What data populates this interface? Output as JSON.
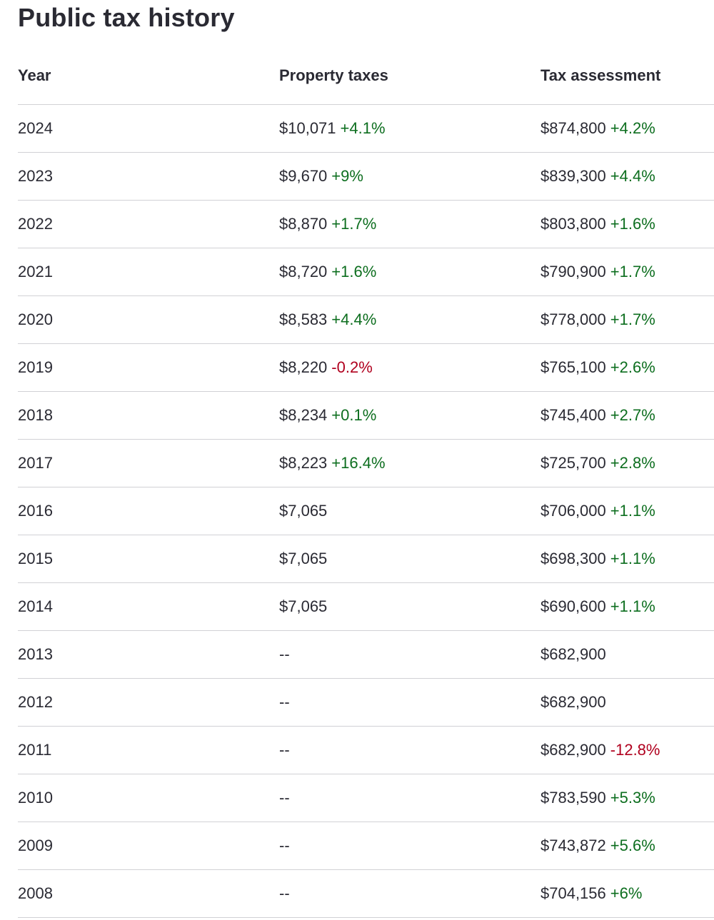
{
  "title": "Public tax history",
  "columns": {
    "year": "Year",
    "property_taxes": "Property taxes",
    "tax_assessment": "Tax assessment"
  },
  "colors": {
    "increase": "#0d6e1f",
    "decrease": "#b0001e",
    "divider": "#d1d1d5",
    "text": "#2a2a33"
  },
  "rows": [
    {
      "year": "2024",
      "tax": "$10,071",
      "tax_change": "+4.1%",
      "assessment": "$874,800",
      "assessment_change": "+4.2%"
    },
    {
      "year": "2023",
      "tax": "$9,670",
      "tax_change": "+9%",
      "assessment": "$839,300",
      "assessment_change": "+4.4%"
    },
    {
      "year": "2022",
      "tax": "$8,870",
      "tax_change": "+1.7%",
      "assessment": "$803,800",
      "assessment_change": "+1.6%"
    },
    {
      "year": "2021",
      "tax": "$8,720",
      "tax_change": "+1.6%",
      "assessment": "$790,900",
      "assessment_change": "+1.7%"
    },
    {
      "year": "2020",
      "tax": "$8,583",
      "tax_change": "+4.4%",
      "assessment": "$778,000",
      "assessment_change": "+1.7%"
    },
    {
      "year": "2019",
      "tax": "$8,220",
      "tax_change": "-0.2%",
      "assessment": "$765,100",
      "assessment_change": "+2.6%"
    },
    {
      "year": "2018",
      "tax": "$8,234",
      "tax_change": "+0.1%",
      "assessment": "$745,400",
      "assessment_change": "+2.7%"
    },
    {
      "year": "2017",
      "tax": "$8,223",
      "tax_change": "+16.4%",
      "assessment": "$725,700",
      "assessment_change": "+2.8%"
    },
    {
      "year": "2016",
      "tax": "$7,065",
      "tax_change": "",
      "assessment": "$706,000",
      "assessment_change": "+1.1%"
    },
    {
      "year": "2015",
      "tax": "$7,065",
      "tax_change": "",
      "assessment": "$698,300",
      "assessment_change": "+1.1%"
    },
    {
      "year": "2014",
      "tax": "$7,065",
      "tax_change": "",
      "assessment": "$690,600",
      "assessment_change": "+1.1%"
    },
    {
      "year": "2013",
      "tax": "--",
      "tax_change": "",
      "assessment": "$682,900",
      "assessment_change": ""
    },
    {
      "year": "2012",
      "tax": "--",
      "tax_change": "",
      "assessment": "$682,900",
      "assessment_change": ""
    },
    {
      "year": "2011",
      "tax": "--",
      "tax_change": "",
      "assessment": "$682,900",
      "assessment_change": "-12.8%"
    },
    {
      "year": "2010",
      "tax": "--",
      "tax_change": "",
      "assessment": "$783,590",
      "assessment_change": "+5.3%"
    },
    {
      "year": "2009",
      "tax": "--",
      "tax_change": "",
      "assessment": "$743,872",
      "assessment_change": "+5.6%"
    },
    {
      "year": "2008",
      "tax": "--",
      "tax_change": "",
      "assessment": "$704,156",
      "assessment_change": "+6%"
    }
  ]
}
